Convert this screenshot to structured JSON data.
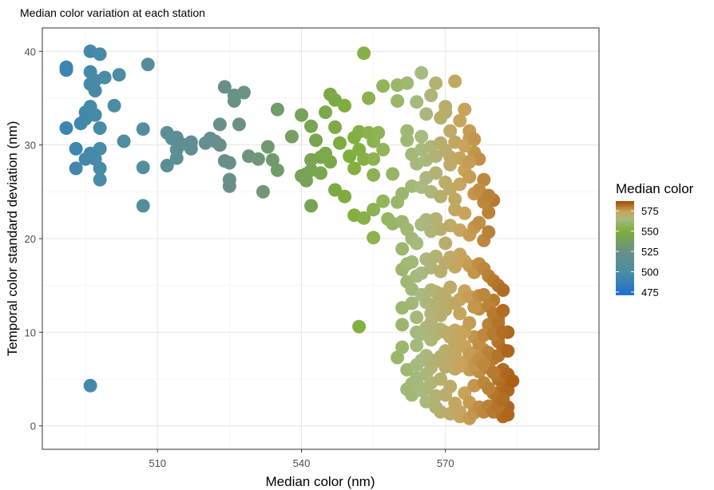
{
  "chart_data": {
    "type": "scatter",
    "title": "Median color variation at each station",
    "xlabel": "Median color (nm)",
    "ylabel": "Temporal color standard deviation (nm)",
    "xlim": [
      486,
      602
    ],
    "ylim": [
      -2.5,
      42.5
    ],
    "x_ticks": [
      510,
      540,
      570
    ],
    "y_ticks": [
      0,
      10,
      20,
      30,
      40
    ],
    "grid": true,
    "legend": {
      "title": "Median color",
      "position": "right",
      "labels": [
        475,
        500,
        525,
        550,
        575
      ],
      "range": [
        471,
        587
      ]
    },
    "color_scale": [
      {
        "value": 471,
        "color": "#1f6fd1"
      },
      {
        "value": 500,
        "color": "#4b8da3"
      },
      {
        "value": 525,
        "color": "#6a8f8a"
      },
      {
        "value": 550,
        "color": "#7fae3a"
      },
      {
        "value": 565,
        "color": "#a7ba80"
      },
      {
        "value": 574,
        "color": "#c9a35a"
      },
      {
        "value": 587,
        "color": "#a24c00"
      }
    ],
    "points": [
      [
        491,
        38.3
      ],
      [
        491,
        38
      ],
      [
        491,
        31.8
      ],
      [
        493,
        29.6
      ],
      [
        493,
        27.5
      ],
      [
        494,
        32.3
      ],
      [
        495,
        33.5
      ],
      [
        495,
        32.8
      ],
      [
        496,
        34.1
      ],
      [
        496,
        40
      ],
      [
        496,
        37.8
      ],
      [
        496,
        36.5
      ],
      [
        497,
        36.9
      ],
      [
        497,
        35.8
      ],
      [
        497,
        28.5
      ],
      [
        498,
        39.7
      ],
      [
        498,
        31.8
      ],
      [
        498,
        29.6
      ],
      [
        498,
        27.5
      ],
      [
        498,
        26.3
      ],
      [
        499,
        37.2
      ],
      [
        501,
        34.2
      ],
      [
        502,
        37.5
      ],
      [
        503,
        30.4
      ],
      [
        495,
        28.5
      ],
      [
        496,
        29.1
      ],
      [
        497,
        33.2
      ],
      [
        496,
        4.3
      ],
      [
        507,
        31.7
      ],
      [
        507,
        23.5
      ],
      [
        507,
        27.6
      ],
      [
        508,
        38.6
      ],
      [
        512,
        31.3
      ],
      [
        512,
        27.8
      ],
      [
        513,
        30.7
      ],
      [
        514,
        30.8
      ],
      [
        514,
        29.5
      ],
      [
        514,
        28.6
      ],
      [
        515,
        30.1
      ],
      [
        517,
        30.3
      ],
      [
        517,
        29.6
      ],
      [
        520,
        30.2
      ],
      [
        521,
        30.7
      ],
      [
        522,
        30.4
      ],
      [
        523,
        32.2
      ],
      [
        523,
        30
      ],
      [
        524,
        36.2
      ],
      [
        524,
        28.3
      ],
      [
        525,
        28.1
      ],
      [
        525,
        26.3
      ],
      [
        525,
        25.6
      ],
      [
        526,
        34.7
      ],
      [
        526,
        35.3
      ],
      [
        527,
        32.2
      ],
      [
        528,
        35.6
      ],
      [
        529,
        28.8
      ],
      [
        531,
        28.5
      ],
      [
        532,
        25
      ],
      [
        533,
        29.8
      ],
      [
        534,
        28.4
      ],
      [
        535,
        33.8
      ],
      [
        535,
        27.3
      ],
      [
        538,
        30.9
      ],
      [
        540,
        33.2
      ],
      [
        540,
        26.7
      ],
      [
        541,
        26.9
      ],
      [
        541,
        26.2
      ],
      [
        542,
        27.3
      ],
      [
        542,
        28.4
      ],
      [
        542,
        23.5
      ],
      [
        542,
        32
      ],
      [
        543,
        30.5
      ],
      [
        544,
        27
      ],
      [
        544,
        28.7
      ],
      [
        545,
        29.1
      ],
      [
        545,
        33.5
      ],
      [
        546,
        35.4
      ],
      [
        546,
        28.2
      ],
      [
        547,
        34.8
      ],
      [
        547,
        31.9
      ],
      [
        547,
        25.2
      ],
      [
        548,
        30.2
      ],
      [
        549,
        34.2
      ],
      [
        549,
        24.5
      ],
      [
        550,
        28.8
      ],
      [
        551,
        30.8
      ],
      [
        551,
        27.5
      ],
      [
        551,
        22.5
      ],
      [
        552,
        31.4
      ],
      [
        552,
        29.5
      ],
      [
        553,
        39.8
      ],
      [
        553,
        28.5
      ],
      [
        553,
        22.2
      ],
      [
        554,
        31.3
      ],
      [
        554,
        35
      ],
      [
        555,
        30.4
      ],
      [
        555,
        28.5
      ],
      [
        555,
        26.8
      ],
      [
        555,
        23.1
      ],
      [
        555,
        20.1
      ],
      [
        556,
        31.3
      ],
      [
        557,
        36.3
      ],
      [
        557,
        29.5
      ],
      [
        557,
        24
      ],
      [
        558,
        22.1
      ],
      [
        559,
        26.9
      ],
      [
        559,
        21.6
      ],
      [
        560,
        34.7
      ],
      [
        560,
        36.4
      ],
      [
        560,
        23.9
      ],
      [
        561,
        21.8
      ],
      [
        561,
        18.9
      ],
      [
        561,
        24.8
      ],
      [
        562,
        36.6
      ],
      [
        562,
        31.5
      ],
      [
        562,
        30.5
      ],
      [
        563,
        29
      ],
      [
        563,
        25.6
      ],
      [
        563,
        13.1
      ],
      [
        564,
        34.6
      ],
      [
        565,
        30.9
      ],
      [
        565,
        37.7
      ],
      [
        566,
        33.3
      ],
      [
        567,
        35.3
      ],
      [
        568,
        36.6
      ],
      [
        569,
        32.9
      ],
      [
        570,
        34.1
      ],
      [
        570,
        33.5
      ],
      [
        571,
        31.5
      ],
      [
        571,
        28.7
      ],
      [
        572,
        36.8
      ],
      [
        573,
        32.6
      ],
      [
        574,
        33.8
      ],
      [
        575,
        31.5
      ],
      [
        575,
        30.7
      ],
      [
        576,
        29.2
      ],
      [
        577,
        28.5
      ],
      [
        578,
        26.3
      ],
      [
        552,
        10.6
      ],
      [
        561,
        16.7
      ],
      [
        562,
        17.3
      ],
      [
        562,
        15.4
      ],
      [
        563,
        14.6
      ],
      [
        561,
        12.6
      ],
      [
        560,
        7.3
      ],
      [
        561,
        8.4
      ],
      [
        561,
        10.8
      ],
      [
        562,
        6
      ],
      [
        563,
        4.5
      ],
      [
        562,
        3.9
      ],
      [
        563,
        3.3
      ],
      [
        564,
        11.6
      ],
      [
        564,
        10
      ],
      [
        564,
        8.6
      ],
      [
        564,
        6.5
      ],
      [
        564,
        4.6
      ],
      [
        564,
        5.1
      ],
      [
        565,
        9.8
      ],
      [
        565,
        7
      ],
      [
        565,
        3.8
      ],
      [
        566,
        2.6
      ],
      [
        566,
        4
      ],
      [
        566,
        5.5
      ],
      [
        567,
        4.6
      ],
      [
        567,
        7
      ],
      [
        567,
        9.2
      ],
      [
        567,
        12
      ],
      [
        568,
        14.3
      ],
      [
        568,
        3.2
      ],
      [
        568,
        2
      ],
      [
        569,
        1.5
      ],
      [
        569,
        5
      ],
      [
        569,
        11.8
      ],
      [
        570,
        3.3
      ],
      [
        570,
        8
      ],
      [
        570,
        12.4
      ],
      [
        571,
        1.3
      ],
      [
        571,
        4.2
      ],
      [
        572,
        2.4
      ],
      [
        572,
        6.1
      ],
      [
        572,
        10.2
      ],
      [
        573,
        13.5
      ],
      [
        573,
        1
      ],
      [
        573,
        1.5
      ],
      [
        574,
        3.5
      ],
      [
        574,
        8.5
      ],
      [
        575,
        0.8
      ],
      [
        575,
        2.5
      ],
      [
        575,
        6
      ],
      [
        576,
        1.4
      ],
      [
        576,
        9.5
      ],
      [
        576,
        4.3
      ],
      [
        577,
        2
      ],
      [
        577,
        5.8
      ],
      [
        577,
        12.5
      ],
      [
        578,
        1.5
      ],
      [
        578,
        4.6
      ],
      [
        578,
        8.1
      ],
      [
        579,
        2.1
      ],
      [
        579,
        6.2
      ],
      [
        579,
        10.8
      ],
      [
        580,
        1.5
      ],
      [
        580,
        3.5
      ],
      [
        580,
        7.2
      ],
      [
        580,
        13.4
      ],
      [
        581,
        3
      ],
      [
        581,
        5
      ],
      [
        581,
        9
      ],
      [
        581,
        11.5
      ],
      [
        582,
        1
      ],
      [
        582,
        4.2
      ],
      [
        582,
        6
      ],
      [
        582,
        8.1
      ],
      [
        583,
        2
      ],
      [
        583,
        5.5
      ],
      [
        583,
        3.8
      ],
      [
        562,
        21
      ],
      [
        563,
        20
      ],
      [
        564,
        19.5
      ],
      [
        565,
        21.5
      ],
      [
        566,
        22
      ],
      [
        567,
        20.8
      ],
      [
        568,
        22.1
      ],
      [
        569,
        21
      ],
      [
        570,
        19.5
      ],
      [
        571,
        21.4
      ],
      [
        572,
        23.1
      ],
      [
        573,
        20.9
      ],
      [
        574,
        22.7
      ],
      [
        575,
        20.4
      ],
      [
        576,
        21.2
      ],
      [
        577,
        21.7
      ],
      [
        578,
        19.8
      ],
      [
        579,
        20.7
      ],
      [
        580,
        24.1
      ],
      [
        579,
        22.8
      ],
      [
        563,
        17.5
      ],
      [
        564,
        16
      ],
      [
        565,
        16.3
      ],
      [
        566,
        17.8
      ],
      [
        567,
        16.9
      ],
      [
        568,
        18.1
      ],
      [
        569,
        16.5
      ],
      [
        570,
        17.4
      ],
      [
        571,
        18
      ],
      [
        572,
        17
      ],
      [
        573,
        18.3
      ],
      [
        574,
        17.6
      ],
      [
        575,
        17.1
      ],
      [
        576,
        16.4
      ],
      [
        577,
        17.3
      ],
      [
        578,
        16.8
      ],
      [
        579,
        16
      ],
      [
        580,
        15.5
      ],
      [
        581,
        15
      ],
      [
        582,
        14.5
      ],
      [
        565,
        14
      ],
      [
        566,
        13.2
      ],
      [
        567,
        14.5
      ],
      [
        568,
        13
      ],
      [
        569,
        14.1
      ],
      [
        570,
        13.6
      ],
      [
        571,
        14.8
      ],
      [
        572,
        13.1
      ],
      [
        573,
        12
      ],
      [
        574,
        14.4
      ],
      [
        575,
        13.8
      ],
      [
        576,
        12.7
      ],
      [
        577,
        13.9
      ],
      [
        578,
        14
      ],
      [
        579,
        12.8
      ],
      [
        580,
        12
      ],
      [
        581,
        11
      ],
      [
        582,
        12.3
      ],
      [
        583,
        10
      ],
      [
        584,
        4.8
      ],
      [
        566,
        10.5
      ],
      [
        567,
        11
      ],
      [
        568,
        9.8
      ],
      [
        569,
        10.3
      ],
      [
        570,
        10
      ],
      [
        571,
        9.5
      ],
      [
        572,
        8.8
      ],
      [
        573,
        9.4
      ],
      [
        574,
        10.1
      ],
      [
        575,
        11
      ],
      [
        576,
        7.8
      ],
      [
        577,
        8.8
      ],
      [
        578,
        9.7
      ],
      [
        579,
        7.8
      ],
      [
        580,
        9.8
      ],
      [
        581,
        7.5
      ],
      [
        582,
        10
      ],
      [
        583,
        8
      ],
      [
        566,
        7.5
      ],
      [
        567,
        6.2
      ],
      [
        568,
        6.9
      ],
      [
        569,
        7.4
      ],
      [
        570,
        6.3
      ],
      [
        571,
        7
      ],
      [
        572,
        7.6
      ],
      [
        573,
        6.4
      ],
      [
        574,
        6.8
      ],
      [
        575,
        7.7
      ],
      [
        576,
        6.5
      ],
      [
        577,
        7.1
      ],
      [
        578,
        6.6
      ],
      [
        579,
        4
      ],
      [
        580,
        5.7
      ],
      [
        581,
        2
      ],
      [
        582,
        2.8
      ],
      [
        583,
        1.2
      ],
      [
        565,
        25.5
      ],
      [
        566,
        26.5
      ],
      [
        567,
        25
      ],
      [
        568,
        27
      ],
      [
        569,
        24.5
      ],
      [
        570,
        26
      ],
      [
        571,
        25.3
      ],
      [
        572,
        24.2
      ],
      [
        573,
        25.8
      ],
      [
        574,
        27.3
      ],
      [
        575,
        26.6
      ],
      [
        576,
        24.8
      ],
      [
        577,
        25.2
      ],
      [
        578,
        23.9
      ],
      [
        579,
        24.6
      ],
      [
        564,
        28
      ],
      [
        565,
        29.5
      ],
      [
        566,
        28.4
      ],
      [
        567,
        29.8
      ],
      [
        568,
        28.8
      ],
      [
        569,
        30.2
      ],
      [
        570,
        29.4
      ],
      [
        571,
        27.9
      ],
      [
        572,
        30.3
      ],
      [
        573,
        28.6
      ],
      [
        574,
        29.9
      ],
      [
        575,
        28.2
      ],
      [
        576,
        30.6
      ]
    ]
  }
}
